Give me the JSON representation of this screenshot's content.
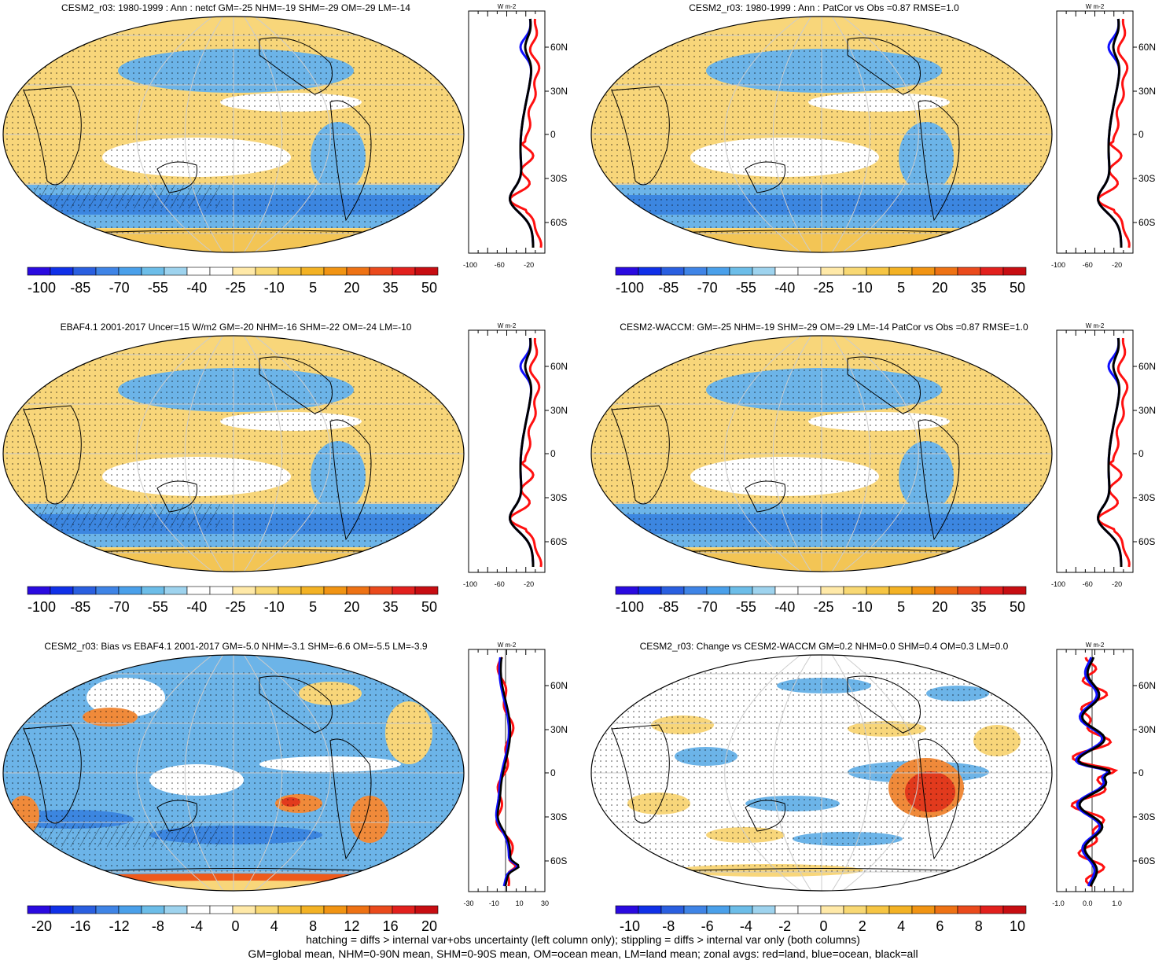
{
  "panels": [
    {
      "title": "CESM2_r03: 1980-1999 : Ann : netcf GM=-25 NHM=-19 SHM=-29 OM=-29 LM=-14",
      "colorbar_labels": [
        "-100",
        "-85",
        "-70",
        "-55",
        "-40",
        "-25",
        "-10",
        "5",
        "20",
        "35",
        "50"
      ],
      "colorbar_scale": "main",
      "zonal_unit": "W m-2",
      "zonal_x_ticks": [
        "-100",
        "-60",
        "-20"
      ],
      "zonal_lat_ticks": [
        "60N",
        "30N",
        "0",
        "30S",
        "60S"
      ],
      "zonal_style": "sw"
    },
    {
      "title": "CESM2_r03: 1980-1999 : Ann : PatCor vs Obs =0.87 RMSE=1.0",
      "colorbar_labels": [
        "-100",
        "-85",
        "-70",
        "-55",
        "-40",
        "-25",
        "-10",
        "5",
        "20",
        "35",
        "50"
      ],
      "colorbar_scale": "main",
      "zonal_unit": "W m-2",
      "zonal_x_ticks": [
        "-100",
        "-60",
        "-20"
      ],
      "zonal_lat_ticks": [
        "60N",
        "30N",
        "0",
        "30S",
        "60S"
      ],
      "zonal_style": "sw"
    },
    {
      "title": "EBAF4.1 2001-2017 Uncer=15 W/m2 GM=-20 NHM=-16 SHM=-22 OM=-24 LM=-10",
      "colorbar_labels": [
        "-100",
        "-85",
        "-70",
        "-55",
        "-40",
        "-25",
        "-10",
        "5",
        "20",
        "35",
        "50"
      ],
      "colorbar_scale": "main",
      "zonal_unit": "W m-2",
      "zonal_x_ticks": [
        "-100",
        "-60",
        "-20"
      ],
      "zonal_lat_ticks": [
        "60N",
        "30N",
        "0",
        "30S",
        "60S"
      ],
      "zonal_style": "sw"
    },
    {
      "title": "CESM2-WACCM: GM=-25 NHM=-19 SHM=-29 OM=-29 LM=-14 PatCor vs Obs =0.87 RMSE=1.0",
      "colorbar_labels": [
        "-100",
        "-85",
        "-70",
        "-55",
        "-40",
        "-25",
        "-10",
        "5",
        "20",
        "35",
        "50"
      ],
      "colorbar_scale": "main",
      "zonal_unit": "W m-2",
      "zonal_x_ticks": [
        "-100",
        "-60",
        "-20"
      ],
      "zonal_lat_ticks": [
        "60N",
        "30N",
        "0",
        "30S",
        "60S"
      ],
      "zonal_style": "sw"
    },
    {
      "title": "CESM2_r03: Bias vs EBAF4.1 2001-2017 GM=-5.0 NHM=-3.1 SHM=-6.6 OM=-5.5 LM=-3.9",
      "colorbar_labels": [
        "-20",
        "-16",
        "-12",
        "-8",
        "-4",
        "0",
        "4",
        "8",
        "12",
        "16",
        "20"
      ],
      "colorbar_scale": "diff",
      "zonal_unit": "W m-2",
      "zonal_x_ticks": [
        "-30",
        "-10",
        "10",
        "30"
      ],
      "zonal_lat_ticks": [
        "60N",
        "30N",
        "0",
        "30S",
        "60S"
      ],
      "zonal_style": "bias"
    },
    {
      "title": "CESM2_r03: Change vs CESM2-WACCM GM=0.2 NHM=0.0 SHM=0.4 OM=0.3 LM=0.0",
      "colorbar_labels": [
        "-10",
        "-8",
        "-6",
        "-4",
        "-2",
        "0",
        "2",
        "4",
        "6",
        "8",
        "10"
      ],
      "colorbar_scale": "diff",
      "zonal_unit": "W m-2",
      "zonal_x_ticks": [
        "-1.0",
        "0.0",
        "1.0"
      ],
      "zonal_lat_ticks": [
        "60N",
        "30N",
        "0",
        "30S",
        "60S"
      ],
      "zonal_style": "change"
    }
  ],
  "colors": {
    "colorbar": [
      "#2a0ae0",
      "#1030e8",
      "#2a5fe0",
      "#3f84e6",
      "#4aa0ea",
      "#6cbde8",
      "#9ed3ee",
      "#ffffff",
      "#ffffff",
      "#ffe9a8",
      "#f8d873",
      "#f6c543",
      "#f3b224",
      "#f19413",
      "#ee7214",
      "#ea4a1c",
      "#e2201d",
      "#c70d12"
    ],
    "land_curve": "#ff1010",
    "ocean_curve": "#1010ff",
    "all_curve": "#000000",
    "map_yellow": "#f8d67a",
    "map_blue": "#6cb4e8",
    "map_dark_blue": "#3c86e0"
  },
  "footer": {
    "line1": "hatching = diffs > internal var+obs uncertainty (left column only); stippling = diffs > internal var only (both columns)",
    "line2": "GM=global mean, NHM=0-90N mean, SHM=0-90S mean, OM=ocean mean, LM=land mean; zonal avgs: red=land, blue=ocean, black=all"
  }
}
